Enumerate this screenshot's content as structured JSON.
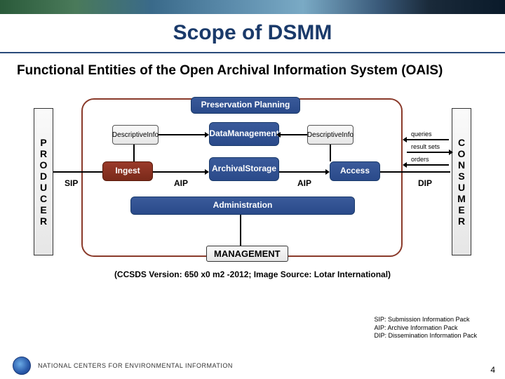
{
  "title": "Scope of DSMM",
  "subtitle": "Functional Entities of the Open Archival Information System (OAIS)",
  "producer_label": "PRODUCER",
  "consumer_label": "CONSUMER",
  "blocks": {
    "preservation": "Preservation Planning",
    "data_mgmt": "Data\nManagement",
    "ingest": "Ingest",
    "archival": "Archival\nStorage",
    "access": "Access",
    "admin": "Administration",
    "desc_info_l": "Descriptive\nInfo",
    "desc_info_r": "Descriptive\nInfo"
  },
  "package_labels": {
    "sip": "SIP",
    "aip_l": "AIP",
    "aip_r": "AIP",
    "dip": "DIP"
  },
  "consumer_lines": {
    "queries": "queries",
    "result_sets": "result sets",
    "orders": "orders"
  },
  "management_label": "MANAGEMENT",
  "legend": {
    "sip": "SIP: Submission Information Pack",
    "aip": "AIP: Archive Information Pack",
    "dip": "DIP: Dissemination Information Pack"
  },
  "caption": "(CCSDS Version: 650 x0 m2 -2012; Image Source: Lotar International)",
  "footer_text": "NATIONAL CENTERS FOR ENVIRONMENTAL INFORMATION",
  "page_number": "4",
  "colors": {
    "title_color": "#1a3a6a",
    "block_bg": "#2a4a8a",
    "ingest_bg": "#7a2a1a",
    "frame_border": "#8a3a2a"
  }
}
